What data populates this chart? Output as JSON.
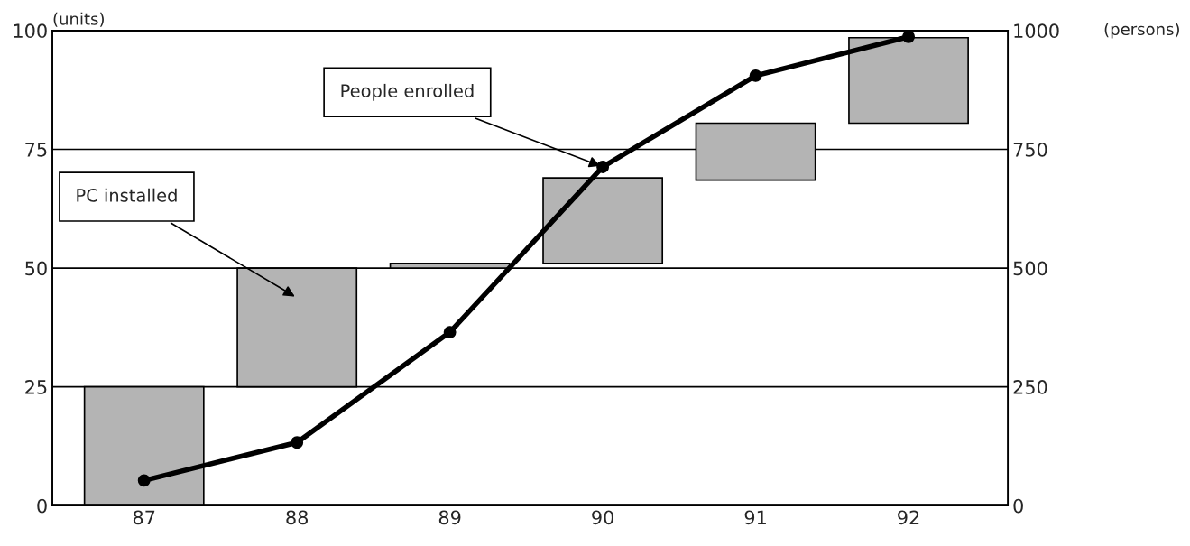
{
  "chart_data": {
    "type": "bar",
    "categories": [
      "87",
      "88",
      "89",
      "90",
      "91",
      "92"
    ],
    "ylabel": "(units)",
    "y2label": "(persons)",
    "ylim": [
      0,
      100
    ],
    "yticks": [
      0,
      25,
      50,
      75,
      100
    ],
    "y2lim": [
      0,
      1000
    ],
    "y2ticks": [
      0,
      250,
      500,
      750,
      1000
    ],
    "grid": "y",
    "legend": false,
    "series": [
      {
        "color": "#b4b4b4",
        "base": [
          0,
          25,
          50,
          51,
          68.5,
          80.5
        ],
        "values": [
          25,
          25,
          1,
          18,
          12,
          18
        ]
      },
      {
        "type": "line",
        "axis": "y2",
        "color": "#000000",
        "marker": "circle",
        "line_style": "solid",
        "values": [
          53,
          133,
          365,
          713,
          905,
          987
        ]
      }
    ],
    "annotations": [
      "PC installed",
      {
        "text": "People enrolled",
        "x": "90",
        "y": 71.3
      }
    ]
  }
}
